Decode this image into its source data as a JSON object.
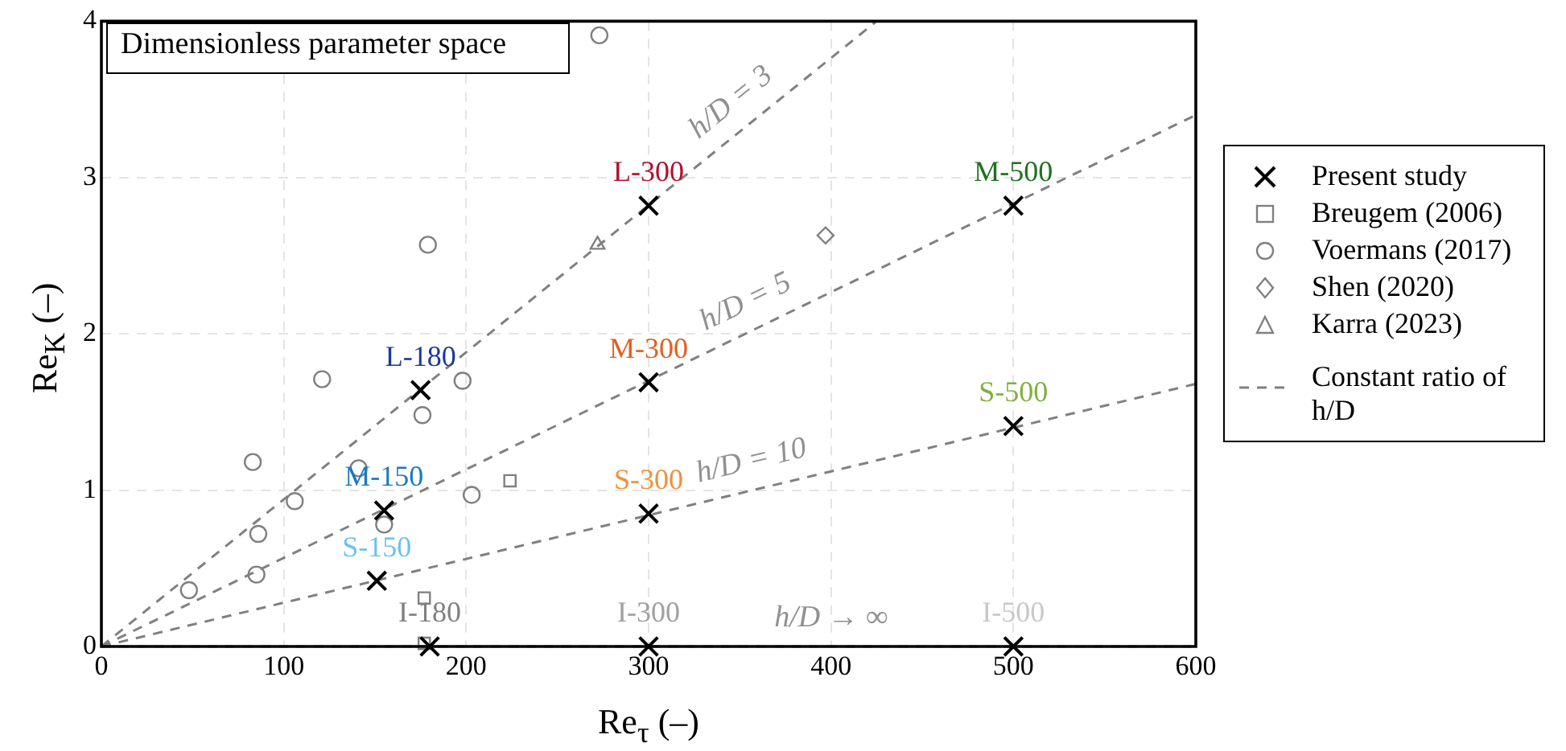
{
  "chart_data": {
    "type": "scatter",
    "title": "Dimensionless parameter space",
    "xlabel": "Re$_{τ}$ (–)",
    "ylabel": "Re$_{K}$ (–)",
    "xlim": [
      0,
      600
    ],
    "xticks": [
      0,
      100,
      200,
      300,
      400,
      500,
      600
    ],
    "ylim": [
      0,
      4
    ],
    "yticks": [
      0,
      1,
      2,
      3,
      4
    ],
    "grid": true,
    "legend": "right",
    "series": [
      {
        "name": "Present study",
        "color": "#000000",
        "marker": "cross",
        "x": [
          175,
          155,
          151,
          180,
          300,
          300,
          300,
          300,
          500,
          500,
          500
        ],
        "values": [
          1.64,
          0.87,
          0.42,
          0,
          2.82,
          1.69,
          0.85,
          0,
          2.82,
          1.41,
          0
        ]
      },
      {
        "name": "Breugem (2006)",
        "color": "#808080",
        "marker": "square",
        "x": [
          224,
          177,
          177
        ],
        "values": [
          1.06,
          0.31,
          0.02
        ]
      },
      {
        "name": "Voermans (2017)",
        "color": "#808080",
        "marker": "circle",
        "x": [
          273,
          179,
          121,
          198,
          176,
          83,
          141,
          106,
          203,
          86,
          155,
          85,
          48
        ],
        "values": [
          3.91,
          2.57,
          1.71,
          1.7,
          1.48,
          1.18,
          1.14,
          0.93,
          0.97,
          0.72,
          0.78,
          0.46,
          0.36
        ]
      },
      {
        "name": "Shen (2020)",
        "color": "#808080",
        "marker": "diamond",
        "x": [
          397
        ],
        "values": [
          2.63
        ]
      },
      {
        "name": "Karra (2023)",
        "color": "#808080",
        "marker": "triangle",
        "x": [
          272
        ],
        "values": [
          2.57
        ]
      },
      {
        "name": "Constant ratio of h/D",
        "type": "line",
        "color": "#808080",
        "marker": "none",
        "line_style": "dashed",
        "x": [
          0,
          425
        ],
        "values": [
          0,
          4
        ]
      },
      {
        "type": "line",
        "color": "#808080",
        "marker": "none",
        "line_style": "dashed",
        "x": [
          0,
          600
        ],
        "values": [
          0,
          3.4
        ]
      },
      {
        "type": "line",
        "color": "#808080",
        "marker": "none",
        "line_style": "dashed",
        "x": [
          0,
          600
        ],
        "values": [
          0,
          1.68
        ]
      },
      {
        "type": "line",
        "color": "#808080",
        "marker": "none",
        "line_style": "dashed",
        "x": [
          0,
          600
        ],
        "values": [
          0,
          0
        ]
      }
    ],
    "annotations": [
      {
        "text": "L-180",
        "x": 175,
        "y": 1.64
      },
      {
        "text": "M-150",
        "x": 155,
        "y": 0.87
      },
      {
        "text": "S-150",
        "x": 151,
        "y": 0.42
      },
      {
        "text": "I-180",
        "x": 180,
        "y": 0
      },
      {
        "text": "L-300",
        "x": 300,
        "y": 2.82
      },
      {
        "text": "M-300",
        "x": 300,
        "y": 1.69
      },
      {
        "text": "S-300",
        "x": 300,
        "y": 0.85
      },
      {
        "text": "I-300",
        "x": 300,
        "y": 0
      },
      {
        "text": "M-500",
        "x": 500,
        "y": 2.82
      },
      {
        "text": "S-500",
        "x": 500,
        "y": 1.41
      },
      {
        "text": "I-500",
        "x": 500,
        "y": 0
      },
      {
        "text": "h/D = 3",
        "x": 355,
        "y": 3.34
      },
      {
        "text": "h/D = 5",
        "x": 360,
        "y": 2.04
      },
      {
        "text": "h/D = 10",
        "x": 360,
        "y": 1.01
      },
      {
        "text": "h/D → ∞",
        "x": 400,
        "y": 0
      }
    ]
  }
}
